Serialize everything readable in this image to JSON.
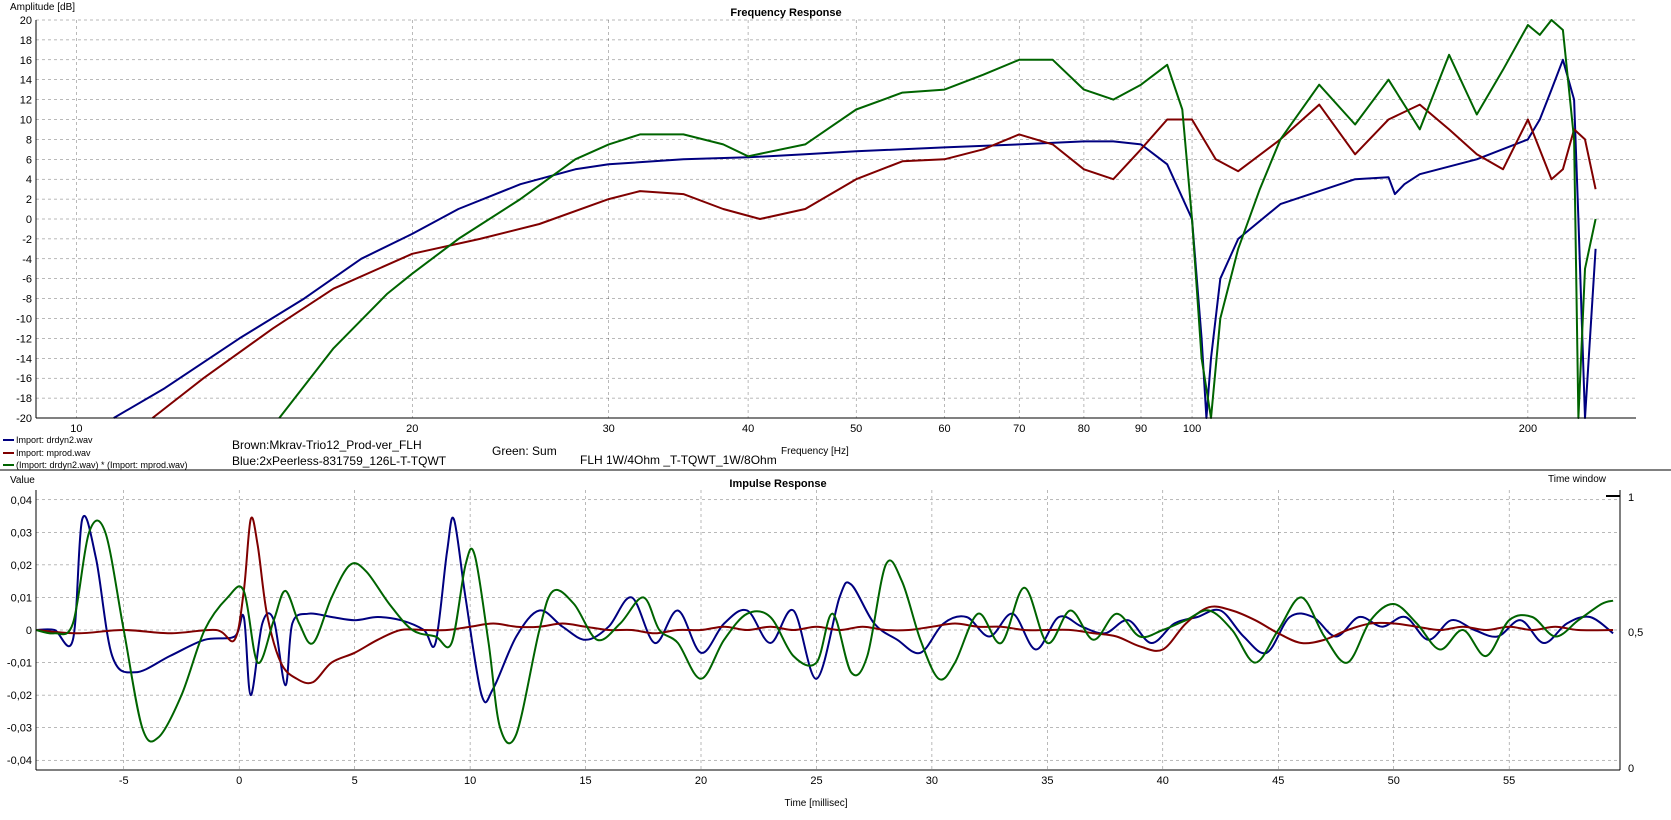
{
  "chart_data": [
    {
      "type": "line",
      "title": "Frequency Response",
      "xlabel": "Frequency [Hz]",
      "ylabel": "Amplitude [dB]",
      "xscale": "log",
      "xlim": [
        9.2,
        250
      ],
      "ylim": [
        -20,
        20
      ],
      "grid": true,
      "x_ticks": [
        10,
        20,
        30,
        40,
        50,
        60,
        70,
        80,
        90,
        100,
        200
      ],
      "y_ticks": [
        20,
        18,
        16,
        14,
        12,
        10,
        8,
        6,
        4,
        2,
        0,
        -2,
        -4,
        -6,
        -8,
        -10,
        -12,
        -14,
        -16,
        -18,
        -20
      ],
      "legend_position": "bottom-left",
      "annotations": [
        "Brown:Mkrav-Trio12_Prod-ver_FLH",
        "Blue:2xPeerless-831759_126L-T-TQWT",
        "Green: Sum",
        "FLH 1W/4Ohm _T-TQWT_1W/8Ohm"
      ],
      "series": [
        {
          "name": "Import: drdyn2.wav",
          "color": "#000080",
          "x": [
            10.8,
            12,
            14,
            16,
            18,
            20,
            22,
            25,
            28,
            30,
            35,
            40,
            45,
            50,
            60,
            70,
            80,
            85,
            90,
            95,
            100,
            102,
            103,
            104,
            106,
            110,
            120,
            140,
            150,
            152,
            155,
            160,
            180,
            200,
            205,
            210,
            215,
            220,
            222,
            225,
            230
          ],
          "y": [
            -20,
            -17,
            -12,
            -8,
            -4,
            -1.5,
            1,
            3.5,
            5,
            5.5,
            6,
            6.2,
            6.5,
            6.8,
            7.2,
            7.5,
            7.8,
            7.8,
            7.5,
            5.5,
            0,
            -12,
            -20,
            -14,
            -6,
            -2,
            1.5,
            4,
            4.2,
            2.5,
            3.5,
            4.5,
            6,
            8,
            10,
            13,
            16,
            12,
            0,
            -20,
            -3
          ]
        },
        {
          "name": "Import: mprod.wav",
          "color": "#800000",
          "x": [
            11.7,
            13,
            15,
            17,
            20,
            23,
            26,
            30,
            32,
            35,
            38,
            41,
            45,
            50,
            55,
            60,
            65,
            70,
            75,
            80,
            85,
            90,
            95,
            100,
            105,
            110,
            120,
            130,
            140,
            150,
            160,
            170,
            180,
            190,
            200,
            210,
            215,
            220,
            225,
            230
          ],
          "y": [
            -20,
            -16,
            -11,
            -7,
            -3.5,
            -2,
            -0.5,
            2,
            2.8,
            2.5,
            1,
            0,
            1,
            4,
            5.8,
            6,
            7,
            8.5,
            7.5,
            5,
            4,
            7,
            10,
            10,
            6,
            4.8,
            8,
            11.5,
            6.5,
            10,
            11.5,
            9,
            6.5,
            5,
            10,
            4,
            5,
            9,
            8,
            3
          ]
        },
        {
          "name": "(Import: drdyn2.wav) * (Import: mprod.wav)",
          "color": "#006400",
          "x": [
            15.2,
            17,
            19,
            20,
            22,
            25,
            28,
            30,
            32,
            35,
            38,
            40,
            45,
            50,
            55,
            60,
            65,
            70,
            75,
            80,
            85,
            90,
            95,
            98,
            100,
            102,
            104,
            106,
            110,
            115,
            120,
            130,
            140,
            150,
            160,
            170,
            180,
            190,
            200,
            205,
            210,
            215,
            220,
            222,
            225,
            230
          ],
          "y": [
            -20,
            -13,
            -7.5,
            -5.5,
            -2,
            2,
            6,
            7.5,
            8.5,
            8.5,
            7.5,
            6.3,
            7.5,
            11,
            12.7,
            13,
            14.5,
            16,
            16,
            13,
            12,
            13.5,
            15.5,
            11,
            0,
            -14,
            -20,
            -10,
            -3,
            3,
            8,
            13.5,
            9.5,
            14,
            9,
            16.5,
            10.5,
            15,
            19.5,
            18.5,
            20,
            19,
            8,
            -20,
            -5,
            0
          ]
        }
      ]
    },
    {
      "type": "line",
      "title": "Impulse Response",
      "xlabel": "Time [millisec]",
      "ylabel": "Value",
      "xlim": [
        -8.8,
        59.8
      ],
      "ylim": [
        -0.043,
        0.043
      ],
      "grid": true,
      "x_ticks": [
        -5,
        0,
        5,
        10,
        15,
        20,
        25,
        30,
        35,
        40,
        45,
        50,
        55
      ],
      "y_ticks": [
        0.04,
        0.03,
        0.02,
        0.01,
        0,
        -0.01,
        -0.02,
        -0.03,
        -0.04
      ],
      "y_tick_labels": [
        "0,04",
        "0,03",
        "0,02",
        "0,01",
        "0",
        "-0,01",
        "-0,02",
        "-0,03",
        "-0,04"
      ],
      "x_tick_labels": [
        "-5",
        "0",
        "5",
        "10",
        "15",
        "20",
        "25",
        "30",
        "35",
        "40",
        "45",
        "50",
        "55"
      ],
      "secondary_y_label": "Time window",
      "secondary_y_ticks": [
        "1",
        "0,5",
        "0"
      ],
      "series": [
        {
          "color": "#000080",
          "x": [
            -8.8,
            -8,
            -7.2,
            -6.8,
            -6.2,
            -5.5,
            -4.5,
            -3,
            -1.5,
            -0.2,
            0.2,
            0.5,
            1,
            1.5,
            2,
            2.3,
            3,
            4,
            5,
            6,
            7,
            8,
            8.5,
            9,
            9.3,
            9.8,
            10.5,
            11,
            12,
            13,
            14,
            15,
            16,
            17,
            18,
            19,
            20,
            21,
            22,
            23,
            24,
            25,
            26,
            26.5,
            27.5,
            28.5,
            29.5,
            30.5,
            31.5,
            32.5,
            33.5,
            34.5,
            35.5,
            36.5,
            37.5,
            38.5,
            39.5,
            40.5,
            41.5,
            42.5,
            43.5,
            44.5,
            45.5,
            46.5,
            47.5,
            48.5,
            49.5,
            50.5,
            51.5,
            52.5,
            53.5,
            54.5,
            55.5,
            56.5,
            57.5,
            58.5,
            59.5
          ],
          "y": [
            0,
            0,
            -0.003,
            0.034,
            0.022,
            -0.008,
            -0.013,
            -0.008,
            -0.003,
            -0.002,
            0.004,
            -0.02,
            0.002,
            0.003,
            -0.017,
            0.002,
            0.005,
            0.004,
            0.003,
            0.004,
            0.003,
            0.0,
            -0.004,
            0.024,
            0.034,
            0.01,
            -0.02,
            -0.018,
            -0.002,
            0.006,
            0.001,
            -0.003,
            0.001,
            0.01,
            -0.004,
            0.006,
            -0.007,
            0.002,
            0.006,
            -0.004,
            0.006,
            -0.015,
            0.01,
            0.014,
            0.002,
            -0.003,
            -0.007,
            0.002,
            0.004,
            -0.002,
            0.005,
            -0.006,
            0.004,
            0.001,
            -0.001,
            0.003,
            -0.004,
            0.002,
            0.004,
            0.006,
            -0.002,
            -0.007,
            0.004,
            0.004,
            -0.002,
            0.004,
            0.001,
            0.004,
            -0.003,
            0.003,
            0.0,
            -0.002,
            0.003,
            -0.004,
            0.002,
            0.004,
            -0.001
          ]
        },
        {
          "color": "#800000",
          "x": [
            -8.8,
            -7,
            -5,
            -3,
            -1,
            -0.2,
            0.2,
            0.5,
            0.8,
            1.2,
            1.8,
            2.5,
            3.2,
            4,
            5,
            6,
            7,
            8,
            9,
            10,
            11,
            12,
            13,
            14,
            15,
            16,
            17,
            18,
            19,
            20,
            21,
            22,
            23,
            24,
            25,
            26,
            27,
            28,
            29,
            30,
            31,
            32,
            33,
            34,
            35,
            36,
            37,
            38,
            39,
            40,
            41,
            42,
            43,
            44,
            45,
            46,
            47,
            48,
            49,
            50,
            51,
            52,
            53,
            54,
            55,
            56,
            57,
            58,
            59.5
          ],
          "y": [
            0,
            -0.001,
            0.0,
            -0.001,
            0.0,
            -0.003,
            0.012,
            0.034,
            0.026,
            0.005,
            -0.01,
            -0.015,
            -0.016,
            -0.01,
            -0.007,
            -0.003,
            0.0,
            0.0,
            0.0,
            0.001,
            0.002,
            0.001,
            0.001,
            0.002,
            0.001,
            0.0,
            0.0,
            -0.001,
            0.0,
            0.0,
            0.001,
            0.0,
            0.001,
            0.0,
            0.001,
            0.0,
            0.001,
            0.0,
            0.0,
            0.001,
            0.002,
            0.001,
            0.001,
            0.0,
            0.0,
            0.0,
            -0.001,
            -0.002,
            -0.005,
            -0.006,
            0.002,
            0.007,
            0.006,
            0.003,
            -0.001,
            -0.004,
            -0.003,
            0.0,
            0.002,
            0.002,
            0.001,
            0.0,
            0.001,
            0.0,
            0.001,
            0.0,
            0.001,
            0.0,
            0.0
          ]
        },
        {
          "color": "#006400",
          "x": [
            -8.8,
            -8,
            -7.2,
            -6.5,
            -5.8,
            -5,
            -4.2,
            -3.5,
            -2.5,
            -1.5,
            -0.5,
            0.2,
            0.8,
            1.5,
            2,
            2.6,
            3.2,
            4,
            4.8,
            5.5,
            6.5,
            7.5,
            8.5,
            9.2,
            9.8,
            10.2,
            10.8,
            11.3,
            12,
            13,
            13.6,
            14.5,
            15.5,
            16.5,
            17.5,
            18.2,
            19,
            20,
            21,
            22,
            23,
            24,
            25,
            25.7,
            26.5,
            27.2,
            28,
            28.7,
            29.5,
            30.3,
            31,
            32,
            33,
            34,
            35,
            36,
            37,
            38,
            39,
            40,
            41,
            42,
            43,
            44,
            45,
            46,
            47,
            48,
            49,
            50,
            51,
            52,
            53,
            54,
            55,
            56,
            57,
            58,
            59,
            59.5
          ],
          "y": [
            0,
            -0.001,
            0.002,
            0.03,
            0.03,
            0.0,
            -0.03,
            -0.033,
            -0.02,
            0.0,
            0.01,
            0.012,
            -0.01,
            0.003,
            0.012,
            0.002,
            -0.004,
            0.01,
            0.02,
            0.018,
            0.008,
            0.0,
            -0.002,
            -0.004,
            0.02,
            0.023,
            -0.004,
            -0.03,
            -0.032,
            0.0,
            0.012,
            0.008,
            -0.003,
            0.002,
            0.01,
            0.0,
            -0.004,
            -0.015,
            -0.003,
            0.005,
            0.004,
            -0.008,
            -0.01,
            0.005,
            -0.013,
            -0.008,
            0.02,
            0.015,
            -0.003,
            -0.015,
            -0.01,
            0.005,
            -0.004,
            0.013,
            -0.004,
            0.006,
            -0.003,
            0.005,
            -0.002,
            0.0,
            0.003,
            0.006,
            0.0,
            -0.01,
            0.0,
            0.01,
            -0.002,
            -0.01,
            0.003,
            0.008,
            0.002,
            -0.006,
            0.0,
            -0.008,
            0.003,
            0.004,
            -0.002,
            0.003,
            0.008,
            0.009
          ]
        }
      ]
    }
  ]
}
